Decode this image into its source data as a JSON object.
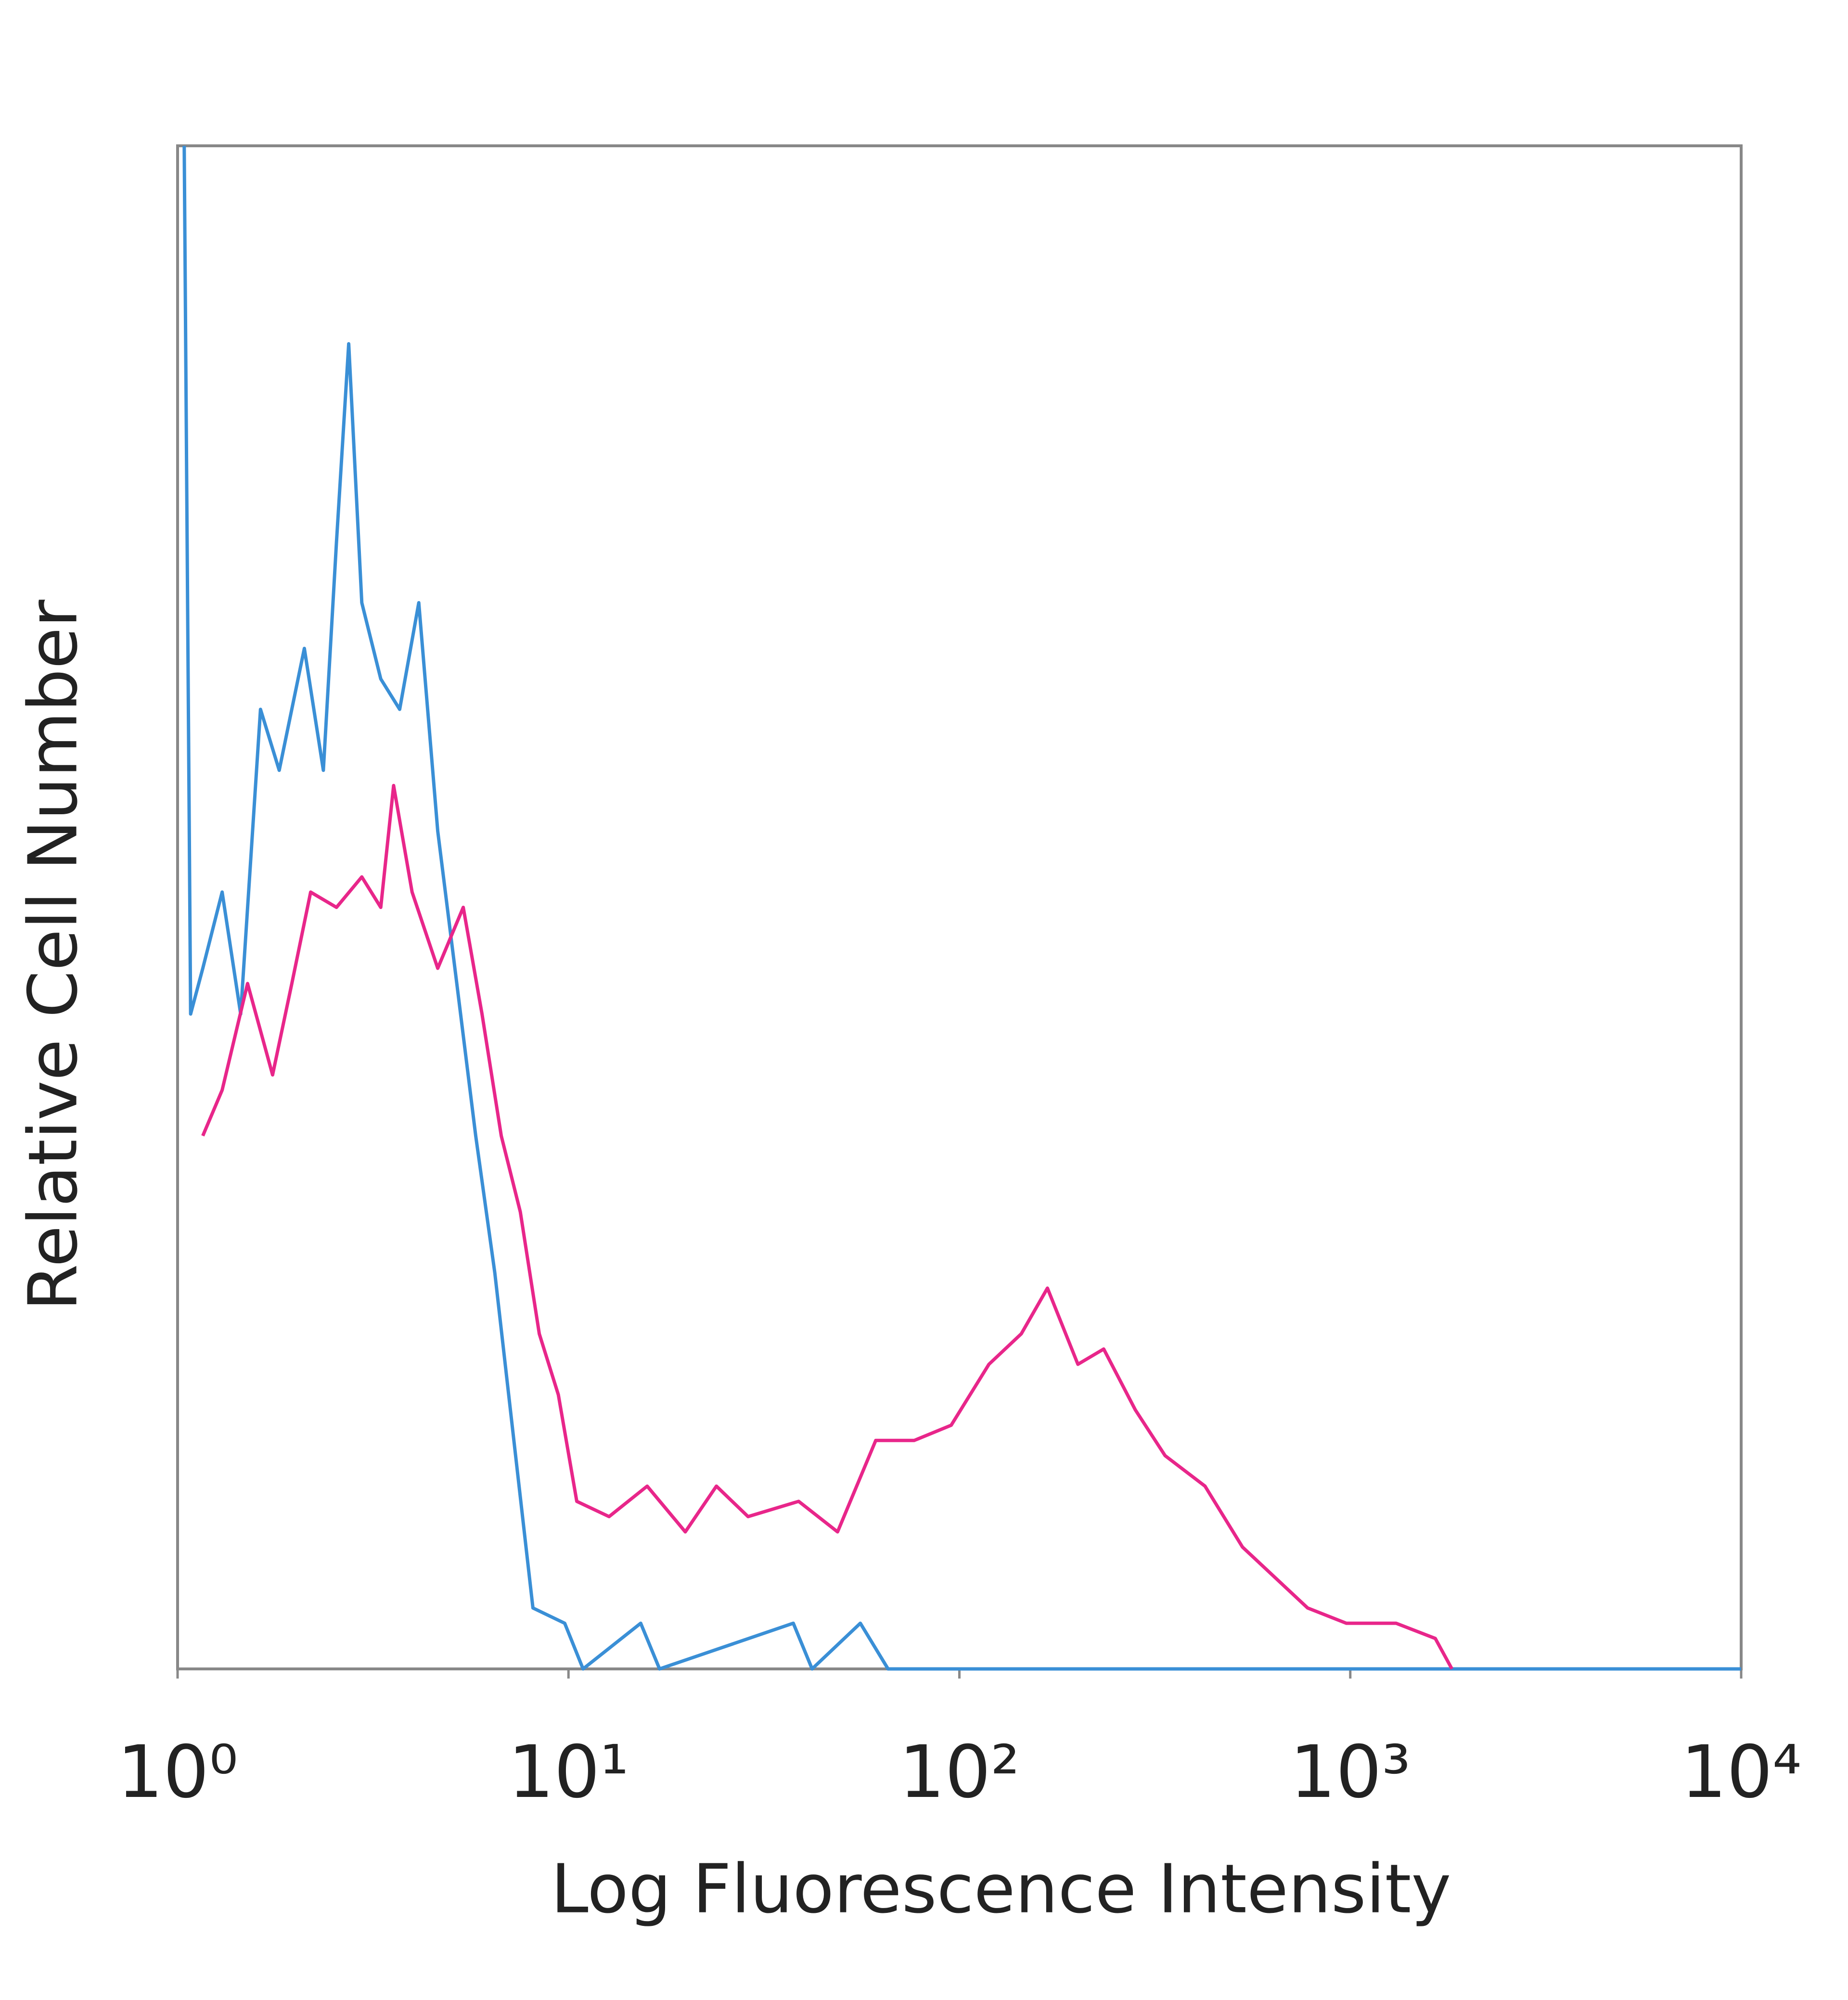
{
  "chart_data": {
    "type": "line",
    "xlabel": "Log Fluorescence Intensity",
    "ylabel": "Relative Cell Number",
    "xscale": "log",
    "xlim": [
      1,
      10000
    ],
    "xticks": [
      {
        "value": 1,
        "label": "10⁰"
      },
      {
        "value": 10,
        "label": "10¹"
      },
      {
        "value": 100,
        "label": "10²"
      },
      {
        "value": 1000,
        "label": "10³"
      },
      {
        "value": 10000,
        "label": "10⁴"
      }
    ],
    "ylim": [
      0,
      100
    ],
    "grid": false,
    "series": [
      {
        "color": "#3a8fd6",
        "x": [
          1.04,
          1.08,
          1.16,
          1.3,
          1.45,
          1.63,
          1.82,
          2.11,
          2.36,
          2.55,
          2.74,
          2.96,
          3.31,
          3.7,
          4.14,
          4.63,
          5.18,
          5.79,
          6.48,
          7.25,
          8.11,
          9.78,
          10.9,
          15.3,
          17.1,
          37.6,
          42,
          55.8,
          65.7,
          10000
        ],
        "values": [
          100,
          43,
          46,
          51,
          43,
          63,
          59,
          67,
          59,
          74,
          87,
          70,
          65,
          63,
          70,
          55,
          45,
          35,
          26,
          15,
          4,
          3,
          0,
          3,
          0,
          3,
          0,
          3,
          0,
          0
        ]
      },
      {
        "color": "#e8268a",
        "x": [
          1.16,
          1.3,
          1.51,
          1.75,
          1.96,
          2.19,
          2.55,
          2.96,
          3.31,
          3.57,
          3.98,
          4.63,
          5.38,
          6.01,
          6.73,
          7.53,
          8.42,
          9.42,
          10.5,
          12.7,
          15.9,
          19.9,
          23.9,
          28.8,
          38.8,
          48.8,
          61.1,
          76.6,
          95.3,
          119,
          144,
          168,
          201,
          234,
          282,
          336,
          425,
          530,
          642,
          778,
          977,
          1310,
          1650,
          1820
        ],
        "values": [
          35,
          38,
          45,
          39,
          45,
          51,
          50,
          52,
          50,
          58,
          51,
          46,
          50,
          43,
          35,
          30,
          22,
          18,
          11,
          10,
          12,
          9,
          12,
          10,
          11,
          9,
          15,
          15,
          16,
          20,
          22,
          25,
          20,
          21,
          17,
          14,
          12,
          8,
          6,
          4,
          3,
          3,
          2,
          0
        ]
      }
    ]
  }
}
